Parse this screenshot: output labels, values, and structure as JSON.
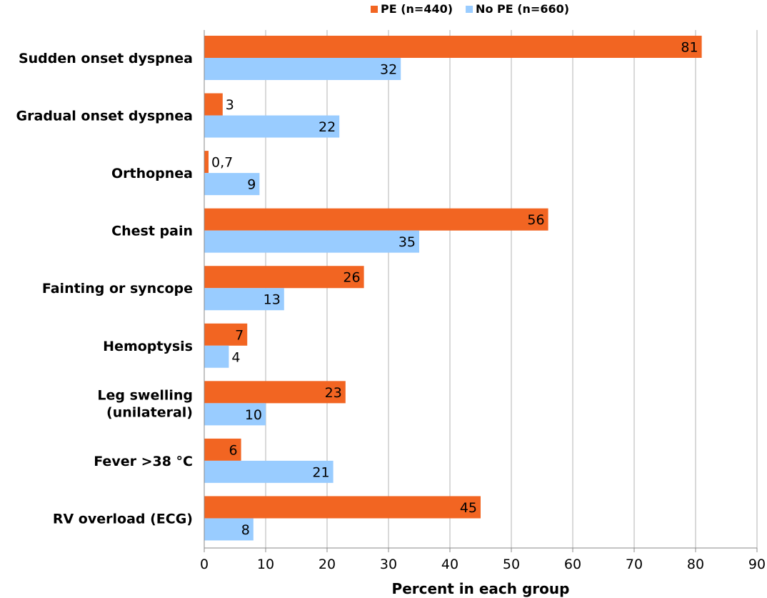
{
  "chart_data": {
    "type": "bar",
    "orientation": "horizontal",
    "categories": [
      [
        "Sudden onset dyspnea"
      ],
      [
        "Gradual onset dyspnea"
      ],
      [
        "Orthopnea"
      ],
      [
        "Chest pain"
      ],
      [
        "Fainting or syncope"
      ],
      [
        "Hemoptysis"
      ],
      [
        "Leg swelling",
        "(unilateral)"
      ],
      [
        "Fever >38 °C"
      ],
      [
        "RV overload (ECG)"
      ]
    ],
    "series": [
      {
        "name": "PE (n=440)",
        "color": "#f26522",
        "values": [
          81,
          3,
          0.7,
          56,
          26,
          7,
          23,
          6,
          45
        ],
        "labels": [
          "81",
          "3",
          "0,7",
          "56",
          "26",
          "7",
          "23",
          "6",
          "45"
        ]
      },
      {
        "name": "No PE (n=660)",
        "color": "#99ccff",
        "values": [
          32,
          22,
          9,
          35,
          13,
          4,
          10,
          21,
          8
        ],
        "labels": [
          "32",
          "22",
          "9",
          "35",
          "13",
          "4",
          "10",
          "21",
          "8"
        ]
      }
    ],
    "xlim": [
      0,
      90
    ],
    "xticks": [
      "0",
      "10",
      "20",
      "30",
      "40",
      "50",
      "60",
      "70",
      "80",
      "90"
    ],
    "xlabel": "Percent in each group",
    "ylabel": "",
    "title": "",
    "grid": true,
    "legend_position": "top-center"
  }
}
